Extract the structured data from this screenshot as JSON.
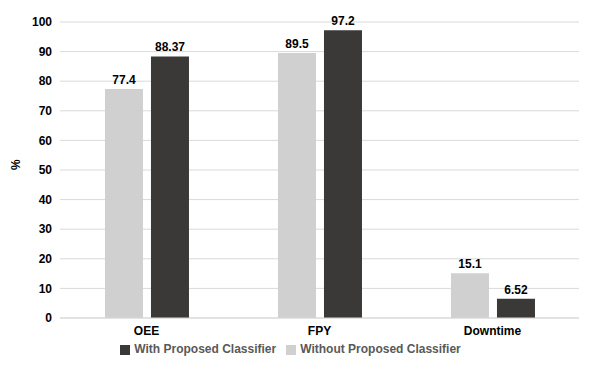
{
  "chart_data": {
    "type": "bar",
    "categories": [
      "OEE",
      "FPY",
      "Downtime"
    ],
    "series": [
      {
        "name": "Without Proposed Classifier",
        "color": "#d0d0d0",
        "values": [
          77.4,
          89.5,
          15.1
        ]
      },
      {
        "name": "With Proposed Classifier",
        "color": "#3b3838",
        "values": [
          88.37,
          97.2,
          6.52
        ]
      }
    ],
    "y_label": "%",
    "ylim": [
      0,
      100
    ],
    "yticks": [
      0,
      10,
      20,
      30,
      40,
      50,
      60,
      70,
      80,
      90,
      100
    ],
    "grid": true,
    "legend": "bottom",
    "data_labels": true
  }
}
